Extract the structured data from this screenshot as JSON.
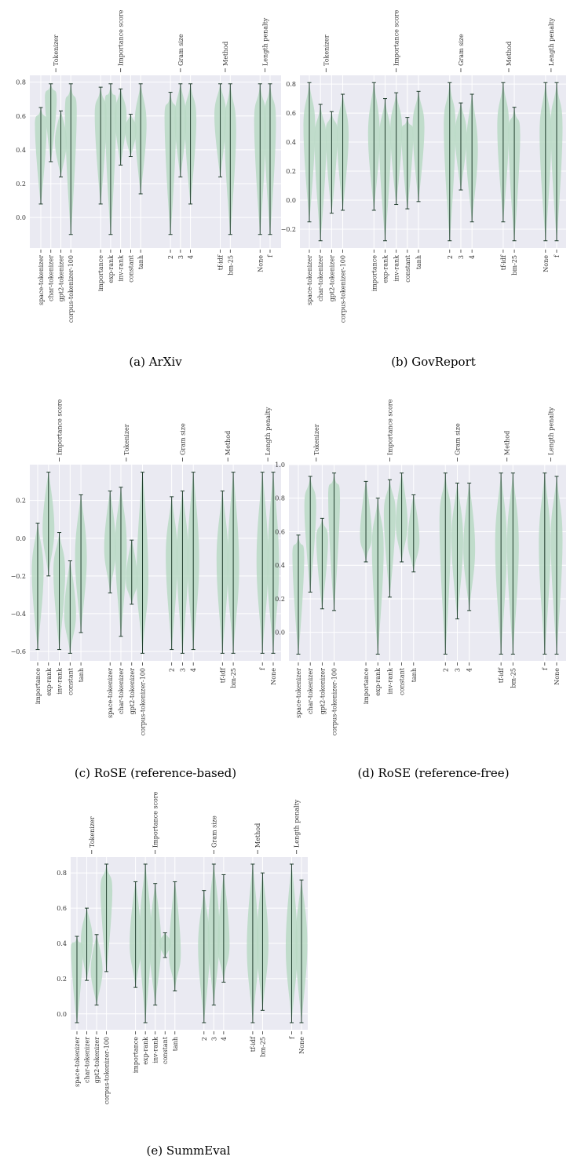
{
  "violin_color": "#b9d9c4",
  "line_color": "#1f3d2c",
  "bg_color": "#eaeaf2",
  "chart_data": [
    {
      "id": "a",
      "caption": "(a) ArXiv",
      "type": "violin",
      "ylim": [
        -0.18,
        0.84
      ],
      "yticks": [
        0.0,
        0.2,
        0.4,
        0.6,
        0.8
      ],
      "yticklabels": [
        "0.0",
        "0.2",
        "0.4",
        "0.6",
        "0.8"
      ],
      "groups": [
        {
          "name": "Tokenizer",
          "items": [
            {
              "label": "space-tokenizer",
              "min": 0.08,
              "max": 0.65,
              "center": 0.54
            },
            {
              "label": "char-tokenizer",
              "min": 0.33,
              "max": 0.79,
              "center": 0.7
            },
            {
              "label": "gpt2-tokenizer",
              "min": 0.24,
              "max": 0.63,
              "center": 0.45
            },
            {
              "label": "corpus-tokenizer-100",
              "min": -0.1,
              "max": 0.79,
              "center": 0.62
            }
          ]
        },
        {
          "name": "Importance score",
          "items": [
            {
              "label": "importance",
              "min": 0.08,
              "max": 0.77,
              "center": 0.6
            },
            {
              "label": "exp-rank",
              "min": -0.1,
              "max": 0.79,
              "center": 0.64
            },
            {
              "label": "inv-rank",
              "min": 0.31,
              "max": 0.76,
              "center": 0.6
            },
            {
              "label": "constant",
              "min": 0.36,
              "max": 0.61,
              "center": 0.52
            },
            {
              "label": "tanh",
              "min": 0.14,
              "max": 0.79,
              "center": 0.55
            }
          ]
        },
        {
          "name": "Gram size",
          "items": [
            {
              "label": "2",
              "min": -0.1,
              "max": 0.74,
              "center": 0.58
            },
            {
              "label": "3",
              "min": 0.24,
              "max": 0.79,
              "center": 0.58
            },
            {
              "label": "4",
              "min": 0.08,
              "max": 0.79,
              "center": 0.58
            }
          ]
        },
        {
          "name": "Method",
          "items": [
            {
              "label": "tf-idf",
              "min": 0.24,
              "max": 0.79,
              "center": 0.6
            },
            {
              "label": "bm-25",
              "min": -0.1,
              "max": 0.79,
              "center": 0.52
            }
          ]
        },
        {
          "name": "Length penalty",
          "items": [
            {
              "label": "None",
              "min": -0.1,
              "max": 0.79,
              "center": 0.56
            },
            {
              "label": "f",
              "min": -0.1,
              "max": 0.79,
              "center": 0.56
            }
          ]
        }
      ]
    },
    {
      "id": "b",
      "caption": "(b) GovReport",
      "type": "violin",
      "ylim": [
        -0.33,
        0.86
      ],
      "yticks": [
        -0.2,
        0.0,
        0.2,
        0.4,
        0.6,
        0.8
      ],
      "yticklabels": [
        "−0.2",
        "0.0",
        "0.2",
        "0.4",
        "0.6",
        "0.8"
      ],
      "groups": [
        {
          "name": "Tokenizer",
          "items": [
            {
              "label": "space-tokenizer",
              "min": -0.15,
              "max": 0.81,
              "center": 0.5
            },
            {
              "label": "char-tokenizer",
              "min": -0.28,
              "max": 0.66,
              "center": 0.4
            },
            {
              "label": "gpt2-tokenizer",
              "min": -0.09,
              "max": 0.61,
              "center": 0.45
            },
            {
              "label": "corpus-tokenizer-100",
              "min": -0.07,
              "max": 0.73,
              "center": 0.45
            }
          ]
        },
        {
          "name": "Importance score",
          "items": [
            {
              "label": "importance",
              "min": -0.07,
              "max": 0.81,
              "center": 0.45
            },
            {
              "label": "exp-rank",
              "min": -0.28,
              "max": 0.7,
              "center": 0.4
            },
            {
              "label": "inv-rank",
              "min": -0.03,
              "max": 0.74,
              "center": 0.48
            },
            {
              "label": "constant",
              "min": -0.06,
              "max": 0.57,
              "center": 0.45
            },
            {
              "label": "tanh",
              "min": -0.01,
              "max": 0.75,
              "center": 0.5
            }
          ]
        },
        {
          "name": "Gram size",
          "items": [
            {
              "label": "2",
              "min": -0.28,
              "max": 0.81,
              "center": 0.5
            },
            {
              "label": "3",
              "min": 0.07,
              "max": 0.67,
              "center": 0.45
            },
            {
              "label": "4",
              "min": -0.15,
              "max": 0.73,
              "center": 0.35
            }
          ]
        },
        {
          "name": "Method",
          "items": [
            {
              "label": "tf-idf",
              "min": -0.15,
              "max": 0.81,
              "center": 0.5
            },
            {
              "label": "bm-25",
              "min": -0.28,
              "max": 0.64,
              "center": 0.45
            }
          ]
        },
        {
          "name": "Length penalty",
          "items": [
            {
              "label": "None",
              "min": -0.28,
              "max": 0.81,
              "center": 0.45
            },
            {
              "label": "f",
              "min": -0.28,
              "max": 0.81,
              "center": 0.5
            }
          ]
        }
      ]
    },
    {
      "id": "c",
      "caption": "(c) RoSE (reference-based)",
      "type": "violin",
      "ylim": [
        -0.65,
        0.39
      ],
      "yticks": [
        -0.6,
        -0.4,
        -0.2,
        0.0,
        0.2
      ],
      "yticklabels": [
        "−0.6",
        "−0.4",
        "−0.2",
        "0.0",
        "0.2"
      ],
      "groups": [
        {
          "name": "Importance score",
          "items": [
            {
              "label": "importance",
              "min": -0.59,
              "max": 0.08,
              "center": -0.18
            },
            {
              "label": "exp-rank",
              "min": -0.2,
              "max": 0.35,
              "center": 0.05
            },
            {
              "label": "inv-rank",
              "min": -0.59,
              "max": 0.03,
              "center": -0.18
            },
            {
              "label": "constant",
              "min": -0.61,
              "max": -0.12,
              "center": -0.4
            },
            {
              "label": "tanh",
              "min": -0.5,
              "max": 0.23,
              "center": -0.1
            }
          ]
        },
        {
          "name": "Tokenizer",
          "items": [
            {
              "label": "space-tokenizer",
              "min": -0.29,
              "max": 0.25,
              "center": -0.05
            },
            {
              "label": "char-tokenizer",
              "min": -0.52,
              "max": 0.27,
              "center": -0.05
            },
            {
              "label": "gpt2-tokenizer",
              "min": -0.35,
              "max": -0.01,
              "center": -0.22
            },
            {
              "label": "corpus-tokenizer-100",
              "min": -0.61,
              "max": 0.35,
              "center": -0.2
            }
          ]
        },
        {
          "name": "Gram size",
          "items": [
            {
              "label": "2",
              "min": -0.59,
              "max": 0.22,
              "center": -0.1
            },
            {
              "label": "3",
              "min": -0.61,
              "max": 0.25,
              "center": -0.1
            },
            {
              "label": "4",
              "min": -0.59,
              "max": 0.35,
              "center": -0.12
            }
          ]
        },
        {
          "name": "Method",
          "items": [
            {
              "label": "tf-idf",
              "min": -0.61,
              "max": 0.25,
              "center": -0.12
            },
            {
              "label": "bm-25",
              "min": -0.61,
              "max": 0.35,
              "center": -0.15
            }
          ]
        },
        {
          "name": "Length penalty",
          "items": [
            {
              "label": "f",
              "min": -0.61,
              "max": 0.35,
              "center": -0.12
            },
            {
              "label": "None",
              "min": -0.61,
              "max": 0.35,
              "center": -0.15
            }
          ]
        }
      ]
    },
    {
      "id": "d",
      "caption": "(d) RoSE (reference-free)",
      "type": "violin",
      "ylim": [
        -0.17,
        1.0
      ],
      "yticks": [
        0.0,
        0.2,
        0.4,
        0.6,
        0.8,
        1.0
      ],
      "yticklabels": [
        "0.0",
        "0.2",
        "0.4",
        "0.6",
        "0.8",
        "1.0"
      ],
      "groups": [
        {
          "name": "Tokenizer",
          "items": [
            {
              "label": "space-tokenizer",
              "min": -0.13,
              "max": 0.58,
              "center": 0.45
            },
            {
              "label": "char-tokenizer",
              "min": 0.24,
              "max": 0.93,
              "center": 0.75
            },
            {
              "label": "gpt2-tokenizer",
              "min": 0.14,
              "max": 0.68,
              "center": 0.55
            },
            {
              "label": "corpus-tokenizer-100",
              "min": 0.13,
              "max": 0.95,
              "center": 0.8
            }
          ]
        },
        {
          "name": "Importance score",
          "items": [
            {
              "label": "importance",
              "min": 0.42,
              "max": 0.9,
              "center": 0.58
            },
            {
              "label": "exp-rank",
              "min": -0.13,
              "max": 0.8,
              "center": 0.5
            },
            {
              "label": "inv-rank",
              "min": 0.21,
              "max": 0.91,
              "center": 0.7
            },
            {
              "label": "constant",
              "min": 0.42,
              "max": 0.95,
              "center": 0.65
            },
            {
              "label": "tanh",
              "min": 0.36,
              "max": 0.82,
              "center": 0.55
            }
          ]
        },
        {
          "name": "Gram size",
          "items": [
            {
              "label": "2",
              "min": -0.13,
              "max": 0.95,
              "center": 0.65
            },
            {
              "label": "3",
              "min": 0.08,
              "max": 0.89,
              "center": 0.55
            },
            {
              "label": "4",
              "min": 0.13,
              "max": 0.89,
              "center": 0.5
            }
          ]
        },
        {
          "name": "Method",
          "items": [
            {
              "label": "tf-idf",
              "min": -0.13,
              "max": 0.95,
              "center": 0.52
            },
            {
              "label": "bm-25",
              "min": -0.13,
              "max": 0.95,
              "center": 0.52
            }
          ]
        },
        {
          "name": "Length penalty",
          "items": [
            {
              "label": "f",
              "min": -0.13,
              "max": 0.95,
              "center": 0.52
            },
            {
              "label": "None",
              "min": -0.13,
              "max": 0.93,
              "center": 0.55
            }
          ]
        }
      ]
    },
    {
      "id": "e",
      "caption": "(e) SummEval",
      "type": "violin",
      "ylim": [
        -0.09,
        0.89
      ],
      "yticks": [
        0.0,
        0.2,
        0.4,
        0.6,
        0.8
      ],
      "yticklabels": [
        "0.0",
        "0.2",
        "0.4",
        "0.6",
        "0.8"
      ],
      "groups": [
        {
          "name": "Tokenizer",
          "items": [
            {
              "label": "space-tokenizer",
              "min": -0.05,
              "max": 0.44,
              "center": 0.36
            },
            {
              "label": "char-tokenizer",
              "min": 0.19,
              "max": 0.6,
              "center": 0.42
            },
            {
              "label": "gpt2-tokenizer",
              "min": 0.05,
              "max": 0.45,
              "center": 0.25
            },
            {
              "label": "corpus-tokenizer-100",
              "min": 0.24,
              "max": 0.85,
              "center": 0.7
            }
          ]
        },
        {
          "name": "Importance score",
          "items": [
            {
              "label": "importance",
              "min": 0.15,
              "max": 0.75,
              "center": 0.4
            },
            {
              "label": "exp-rank",
              "min": -0.05,
              "max": 0.85,
              "center": 0.45
            },
            {
              "label": "inv-rank",
              "min": 0.05,
              "max": 0.74,
              "center": 0.4
            },
            {
              "label": "constant",
              "min": 0.32,
              "max": 0.46,
              "center": 0.4
            },
            {
              "label": "tanh",
              "min": 0.13,
              "max": 0.75,
              "center": 0.35
            }
          ]
        },
        {
          "name": "Gram size",
          "items": [
            {
              "label": "2",
              "min": -0.05,
              "max": 0.7,
              "center": 0.38
            },
            {
              "label": "3",
              "min": 0.05,
              "max": 0.85,
              "center": 0.45
            },
            {
              "label": "4",
              "min": 0.18,
              "max": 0.79,
              "center": 0.4
            }
          ]
        },
        {
          "name": "Method",
          "items": [
            {
              "label": "tf-idf",
              "min": -0.05,
              "max": 0.85,
              "center": 0.38
            },
            {
              "label": "bm-25",
              "min": 0.02,
              "max": 0.8,
              "center": 0.4
            }
          ]
        },
        {
          "name": "Length penalty",
          "items": [
            {
              "label": "f",
              "min": -0.05,
              "max": 0.85,
              "center": 0.38
            },
            {
              "label": "None",
              "min": -0.05,
              "max": 0.76,
              "center": 0.4
            }
          ]
        }
      ]
    }
  ]
}
